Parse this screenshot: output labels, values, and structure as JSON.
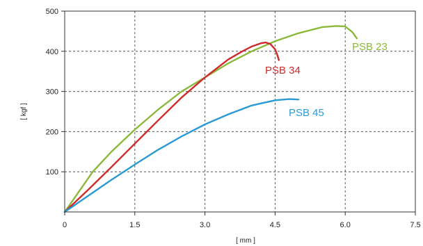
{
  "chart_data": {
    "type": "line",
    "title": "",
    "xlabel": "[ mm ]",
    "ylabel": "[ kgf ]",
    "xlim": [
      0,
      7.5
    ],
    "ylim": [
      0,
      500
    ],
    "x_ticks": [
      0,
      1.5,
      3.0,
      4.5,
      6.0,
      7.5
    ],
    "x_tick_labels": [
      "0",
      "1.5",
      "3.0",
      "4.5",
      "6.0",
      "7.5"
    ],
    "y_ticks": [
      100,
      200,
      300,
      400,
      500
    ],
    "y_tick_labels": [
      "100",
      "200",
      "300",
      "400",
      "500"
    ],
    "grid": true,
    "series": [
      {
        "name": "PSB 23",
        "color": "#8cb83a",
        "x": [
          0,
          0.3,
          0.6,
          1.0,
          1.5,
          2.0,
          2.5,
          3.0,
          3.5,
          4.0,
          4.5,
          5.0,
          5.5,
          5.8,
          6.0,
          6.15,
          6.25
        ],
        "y": [
          0,
          50,
          100,
          150,
          205,
          255,
          300,
          335,
          370,
          400,
          425,
          445,
          460,
          463,
          462,
          448,
          432
        ]
      },
      {
        "name": "PSB 34",
        "color": "#cf2a2a",
        "x": [
          0,
          0.5,
          1.0,
          1.5,
          2.0,
          2.5,
          3.0,
          3.5,
          3.8,
          4.0,
          4.2,
          4.3,
          4.4,
          4.5,
          4.55,
          4.58
        ],
        "y": [
          0,
          55,
          112,
          170,
          228,
          285,
          335,
          380,
          400,
          412,
          420,
          422,
          418,
          405,
          390,
          378
        ]
      },
      {
        "name": "PSB 45",
        "color": "#2a9ad4",
        "x": [
          0,
          0.5,
          1.0,
          1.5,
          2.0,
          2.5,
          3.0,
          3.5,
          4.0,
          4.5,
          4.8,
          5.0
        ],
        "y": [
          0,
          40,
          80,
          118,
          155,
          188,
          218,
          243,
          265,
          278,
          281,
          280
        ]
      }
    ],
    "annotations": [
      {
        "text": "PSB 23",
        "series": "PSB 23"
      },
      {
        "text": "PSB 34",
        "series": "PSB 34"
      },
      {
        "text": "PSB 45",
        "series": "PSB 45"
      }
    ]
  }
}
